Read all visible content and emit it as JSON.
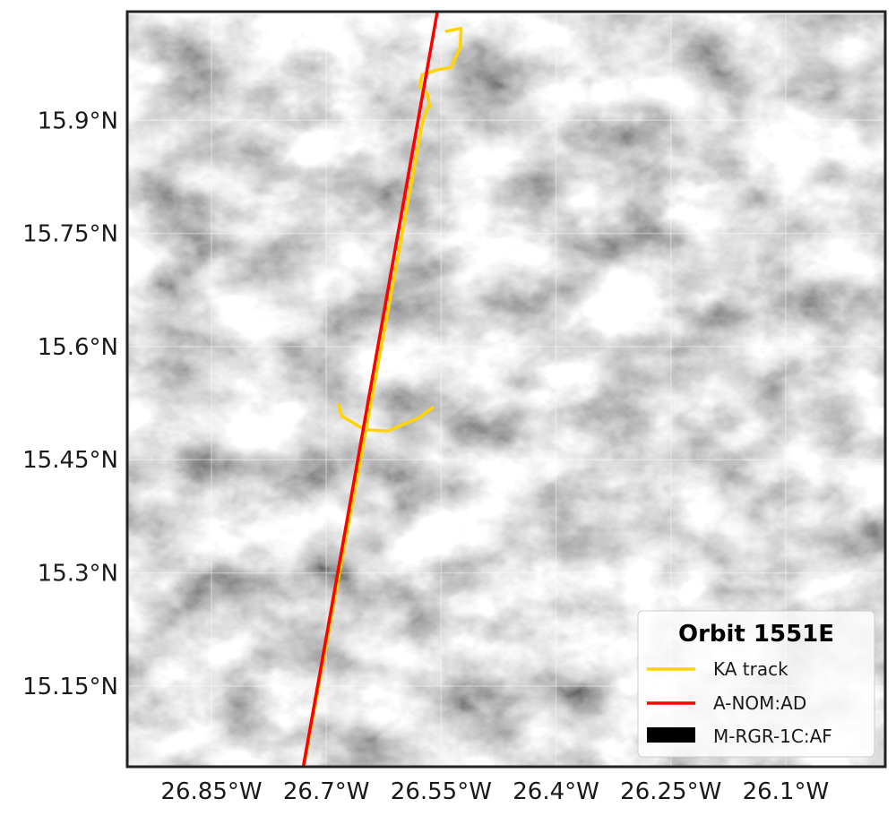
{
  "chart_data": {
    "type": "map",
    "title": "",
    "x_axis": {
      "hemisphere": "W",
      "ticks": [
        26.85,
        26.7,
        26.55,
        26.4,
        26.25,
        26.1
      ],
      "tick_labels": [
        "26.85°W",
        "26.7°W",
        "26.55°W",
        "26.4°W",
        "26.25°W",
        "26.1°W"
      ],
      "range": [
        26.96,
        25.97
      ]
    },
    "y_axis": {
      "hemisphere": "N",
      "ticks": [
        15.9,
        15.75,
        15.6,
        15.45,
        15.3,
        15.15
      ],
      "tick_labels": [
        "15.9°N",
        "15.75°N",
        "15.6°N",
        "15.45°N",
        "15.3°N",
        "15.15°N"
      ],
      "range": [
        15.043,
        16.044
      ]
    },
    "grid": true,
    "background_image": "grayscale satellite imagery (cloud field), rotated swath",
    "legend": {
      "title": "Orbit 1551E",
      "placement": "bottom-right",
      "entries": [
        {
          "label": "KA track",
          "color": "#FFD400",
          "kind": "line"
        },
        {
          "label": "A-NOM:AD",
          "color": "#FF0000",
          "kind": "line"
        },
        {
          "label": "M-RGR-1C:AF",
          "color": "#000000",
          "kind": "patch"
        }
      ]
    },
    "series": [
      {
        "name": "A-NOM:AD",
        "color": "#FF0000",
        "lon": [
          26.555,
          26.73
        ],
        "lat": [
          16.044,
          15.043
        ]
      },
      {
        "name": "KA track",
        "color": "#FFD400",
        "segments": [
          {
            "lon": [
              26.543,
              26.524,
              26.525,
              26.537,
              26.555,
              26.575,
              26.578,
              26.568,
              26.565
            ],
            "lat": [
              16.018,
              16.022,
              15.997,
              15.97,
              15.967,
              15.96,
              15.945,
              15.935,
              15.918
            ]
          },
          {
            "lon": [
              26.568,
              26.575,
              26.61,
              26.73
            ],
            "lat": [
              15.917,
              15.895,
              15.7,
              15.04
            ]
          },
          {
            "lon": [
              26.684,
              26.68,
              26.65,
              26.62,
              26.58,
              26.561
            ],
            "lat": [
              15.523,
              15.508,
              15.49,
              15.488,
              15.505,
              15.519
            ]
          }
        ]
      }
    ]
  }
}
